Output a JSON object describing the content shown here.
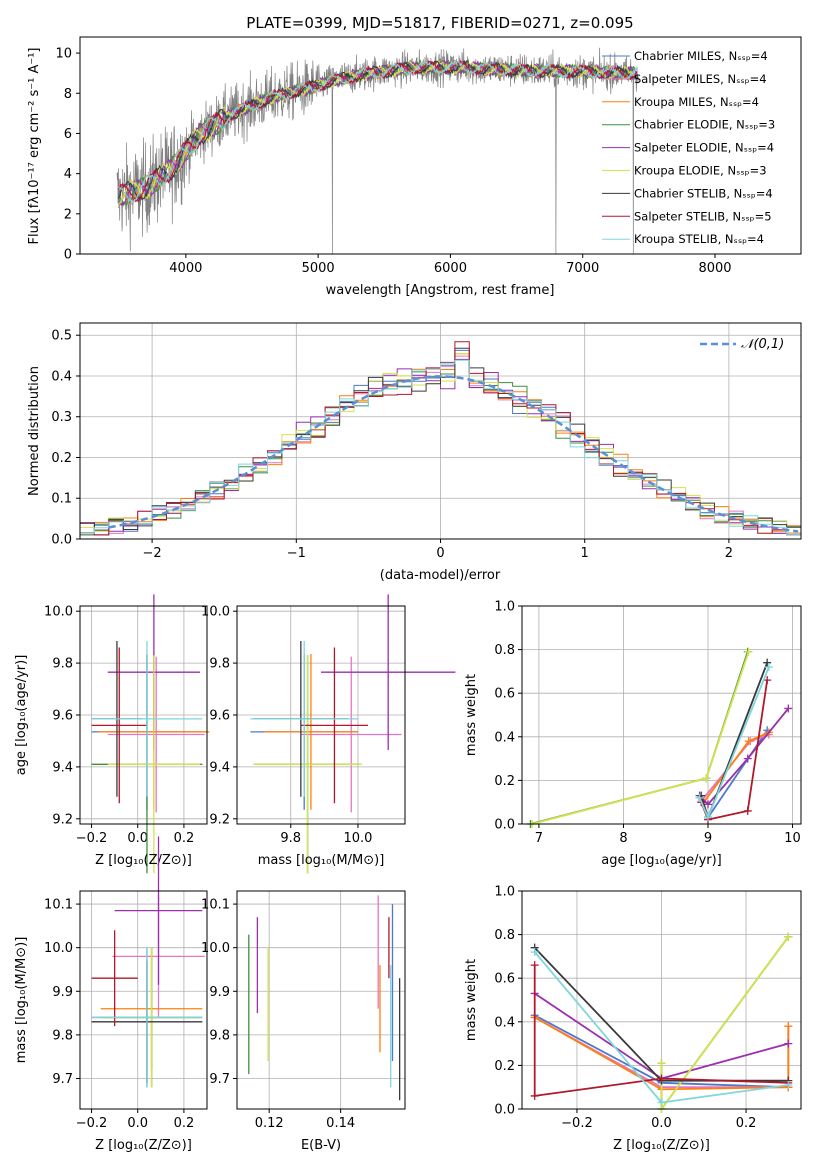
{
  "colors": {
    "chabrier_miles": "#4e79c7",
    "salpeter_miles": "#e377c2",
    "kroupa_miles": "#ff7f0e",
    "chabrier_elodie": "#3f8f3f",
    "salpeter_elodie": "#9b2fae",
    "kroupa_elodie": "#d4e44a",
    "chabrier_stelib": "#3a3a3a",
    "salpeter_stelib": "#b2182b",
    "kroupa_stelib": "#7fd6dd",
    "data": "#808080",
    "normal": "#5b8fd6"
  },
  "chart_data": [
    {
      "id": "spectrum",
      "type": "line",
      "title": "PLATE=0399, MJD=51817, FIBERID=0271, z=0.095",
      "xlabel": "wavelength [Angstrom, rest frame]",
      "ylabel": "Flux [fλ10⁻¹⁷ erg cm⁻² s⁻¹ A⁻¹]",
      "xlim": [
        3200,
        8650
      ],
      "ylim": [
        0,
        10.8
      ],
      "xticks": [
        "4000",
        "5000",
        "6000",
        "7000",
        "8000"
      ],
      "yticks": [
        "0",
        "2",
        "4",
        "6",
        "8",
        "10"
      ],
      "legend_position": "right",
      "legend": [
        {
          "label": "Chabrier MILES, Nₛₛₚ=4",
          "color_key": "chabrier_miles"
        },
        {
          "label": "Salpeter MILES, Nₛₛₚ=4",
          "color_key": "salpeter_miles"
        },
        {
          "label": "Kroupa MILES, Nₛₛₚ=4",
          "color_key": "kroupa_miles"
        },
        {
          "label": "Chabrier ELODIE, Nₛₛₚ=3",
          "color_key": "chabrier_elodie"
        },
        {
          "label": "Salpeter ELODIE, Nₛₛₚ=4",
          "color_key": "salpeter_elodie"
        },
        {
          "label": "Kroupa ELODIE, Nₛₛₚ=3",
          "color_key": "kroupa_elodie"
        },
        {
          "label": "Chabrier STELIB, Nₛₛₚ=4",
          "color_key": "chabrier_stelib"
        },
        {
          "label": "Salpeter STELIB, Nₛₛₚ=5",
          "color_key": "salpeter_stelib"
        },
        {
          "label": "Kroupa STELIB, Nₛₛₚ=4",
          "color_key": "kroupa_stelib"
        }
      ],
      "continuum": {
        "x": [
          3500,
          3700,
          3900,
          4100,
          4300,
          4500,
          4700,
          4900,
          5100,
          5300,
          5500,
          5700,
          5900,
          6100,
          6300,
          6500,
          6700,
          6900,
          7100,
          7300,
          7420
        ],
        "y": [
          2.9,
          3.3,
          4.3,
          5.9,
          6.8,
          7.4,
          7.9,
          8.2,
          8.6,
          8.9,
          9.1,
          9.25,
          9.3,
          9.3,
          9.2,
          9.15,
          9.1,
          9.1,
          9.05,
          9.0,
          9.0
        ]
      }
    },
    {
      "id": "residuals",
      "type": "bar",
      "xlabel": "(data-model)/error",
      "ylabel": "Normed distribution",
      "xlim": [
        -2.5,
        2.5
      ],
      "ylim": [
        0,
        0.53
      ],
      "xticks": [
        "−2",
        "−1",
        "0",
        "1",
        "2"
      ],
      "yticks": [
        "0.0",
        "0.1",
        "0.2",
        "0.3",
        "0.4",
        "0.5"
      ],
      "legend_position": "top-right",
      "normal_label": "𝒩(0,1)",
      "bin_width": 0.1
    },
    {
      "id": "age-vs-Z",
      "type": "scatter",
      "xlabel": "Z [log₁₀(Z/Z⊙)]",
      "ylabel": "age  [log₁₀(age/yr)]",
      "xlim": [
        -0.25,
        0.3
      ],
      "ylim": [
        9.18,
        10.02
      ],
      "xticks": [
        "−0.2",
        "0.0",
        "0.2"
      ],
      "yticks": [
        "9.2",
        "9.4",
        "9.6",
        "9.8",
        "10.0"
      ],
      "points": [
        {
          "color_key": "chabrier_miles",
          "x": 0.04,
          "xerr": 0.24,
          "y": 9.535,
          "yerr": 0.3
        },
        {
          "color_key": "salpeter_miles",
          "x": 0.08,
          "xerr": 0.21,
          "y": 9.525,
          "yerr": 0.3
        },
        {
          "color_key": "kroupa_miles",
          "x": 0.07,
          "xerr": 0.24,
          "y": 9.535,
          "yerr": 0.3
        },
        {
          "color_key": "chabrier_elodie",
          "x": 0.04,
          "xerr": 0.24,
          "y": 9.41,
          "yerr": 0.42
        },
        {
          "color_key": "salpeter_elodie",
          "x": 0.07,
          "xerr": 0.2,
          "y": 9.765,
          "yerr": 0.3
        },
        {
          "color_key": "kroupa_elodie",
          "x": 0.07,
          "xerr": 0.2,
          "y": 9.41,
          "yerr": 0.42
        },
        {
          "color_key": "chabrier_stelib",
          "x": -0.09,
          "xerr": 0.11,
          "y": 9.585,
          "yerr": 0.3
        },
        {
          "color_key": "salpeter_stelib",
          "x": -0.08,
          "xerr": 0.12,
          "y": 9.56,
          "yerr": 0.3
        },
        {
          "color_key": "kroupa_stelib",
          "x": 0.04,
          "xerr": 0.24,
          "y": 9.585,
          "yerr": 0.3
        }
      ]
    },
    {
      "id": "age-vs-mass",
      "type": "scatter",
      "xlabel": "mass [log₁₀(M/M⊙)]",
      "xlim": [
        9.64,
        10.14
      ],
      "ylim": [
        9.18,
        10.02
      ],
      "xticks": [
        "9.8",
        "10.0"
      ],
      "yticks": [
        "9.2",
        "9.4",
        "9.6",
        "9.8",
        "10.0"
      ],
      "points": [
        {
          "color_key": "chabrier_miles",
          "x": 9.84,
          "xerr": 0.16,
          "y": 9.535,
          "yerr": 0.3
        },
        {
          "color_key": "salpeter_miles",
          "x": 9.98,
          "xerr": 0.15,
          "y": 9.525,
          "yerr": 0.3
        },
        {
          "color_key": "kroupa_miles",
          "x": 9.86,
          "xerr": 0.14,
          "y": 9.535,
          "yerr": 0.3
        },
        {
          "color_key": "chabrier_elodie",
          "x": 9.85,
          "xerr": 0.16,
          "y": 9.41,
          "yerr": 0.42
        },
        {
          "color_key": "salpeter_elodie",
          "x": 10.09,
          "xerr": 0.2,
          "y": 9.765,
          "yerr": 0.3
        },
        {
          "color_key": "kroupa_elodie",
          "x": 9.85,
          "xerr": 0.16,
          "y": 9.41,
          "yerr": 0.42
        },
        {
          "color_key": "chabrier_stelib",
          "x": 9.83,
          "xerr": 0.14,
          "y": 9.585,
          "yerr": 0.3
        },
        {
          "color_key": "salpeter_stelib",
          "x": 9.93,
          "xerr": 0.1,
          "y": 9.56,
          "yerr": 0.3
        },
        {
          "color_key": "kroupa_stelib",
          "x": 9.84,
          "xerr": 0.16,
          "y": 9.585,
          "yerr": 0.3
        }
      ]
    },
    {
      "id": "mass-weight-vs-age",
      "type": "line",
      "xlabel": "age  [log₁₀(age/yr)]",
      "ylabel": "mass weight",
      "xlim": [
        6.8,
        10.1
      ],
      "ylim": [
        0,
        1
      ],
      "xticks": [
        "7",
        "8",
        "9",
        "10"
      ],
      "yticks": [
        "0.0",
        "0.2",
        "0.4",
        "0.6",
        "0.8",
        "1.0"
      ],
      "series": [
        {
          "color_key": "chabrier_miles",
          "x": [
            8.9,
            9.0,
            9.7
          ],
          "y": [
            0.12,
            0.03,
            0.43
          ]
        },
        {
          "color_key": "salpeter_miles",
          "x": [
            8.93,
            9.5,
            9.72
          ],
          "y": [
            0.11,
            0.38,
            0.41
          ]
        },
        {
          "color_key": "kroupa_miles",
          "x": [
            8.95,
            9.48,
            9.72
          ],
          "y": [
            0.1,
            0.38,
            0.42
          ]
        },
        {
          "color_key": "chabrier_elodie",
          "x": [
            6.9,
            8.98,
            9.47
          ],
          "y": [
            0.0,
            0.21,
            0.79
          ]
        },
        {
          "color_key": "salpeter_elodie",
          "x": [
            8.9,
            9.0,
            9.47,
            9.95
          ],
          "y": [
            0.13,
            0.09,
            0.3,
            0.53
          ]
        },
        {
          "color_key": "kroupa_elodie",
          "x": [
            6.92,
            8.98,
            9.48
          ],
          "y": [
            0.0,
            0.21,
            0.79
          ]
        },
        {
          "color_key": "chabrier_stelib",
          "x": [
            8.92,
            9.0,
            9.7
          ],
          "y": [
            0.13,
            0.03,
            0.74
          ]
        },
        {
          "color_key": "salpeter_stelib",
          "x": [
            8.92,
            9.0,
            9.47,
            9.7
          ],
          "y": [
            0.1,
            0.02,
            0.06,
            0.66
          ]
        },
        {
          "color_key": "kroupa_stelib",
          "x": [
            8.9,
            9.0,
            9.72
          ],
          "y": [
            0.12,
            0.03,
            0.72
          ]
        }
      ]
    },
    {
      "id": "mass-vs-Z",
      "type": "scatter",
      "xlabel": "Z [log₁₀(Z/Z⊙)]",
      "ylabel": "mass [log₁₀(M/M⊙)]",
      "xlim": [
        -0.25,
        0.3
      ],
      "ylim": [
        9.63,
        10.13
      ],
      "xticks": [
        "−0.2",
        "0.0",
        "0.2"
      ],
      "yticks": [
        "9.7",
        "9.8",
        "9.9",
        "10.0",
        "10.1"
      ],
      "points": [
        {
          "color_key": "chabrier_miles",
          "x": 0.04,
          "xerr": 0.24,
          "y": 9.84,
          "yerr": 0.16
        },
        {
          "color_key": "salpeter_miles",
          "x": 0.09,
          "xerr": 0.2,
          "y": 9.98,
          "yerr": 0.14
        },
        {
          "color_key": "kroupa_miles",
          "x": 0.06,
          "xerr": 0.22,
          "y": 9.86,
          "yerr": 0.14
        },
        {
          "color_key": "chabrier_elodie",
          "x": 0.06,
          "xerr": 0.22,
          "y": 9.84,
          "yerr": 0.16
        },
        {
          "color_key": "salpeter_elodie",
          "x": 0.09,
          "xerr": 0.19,
          "y": 10.085,
          "yerr": 0.17
        },
        {
          "color_key": "kroupa_elodie",
          "x": 0.06,
          "xerr": 0.22,
          "y": 9.84,
          "yerr": 0.16
        },
        {
          "color_key": "chabrier_stelib",
          "x": 0.04,
          "xerr": 0.24,
          "y": 9.83,
          "yerr": 0.14
        },
        {
          "color_key": "salpeter_stelib",
          "x": -0.1,
          "xerr": 0.1,
          "y": 9.93,
          "yerr": 0.11
        },
        {
          "color_key": "kroupa_stelib",
          "x": 0.04,
          "xerr": 0.24,
          "y": 9.84,
          "yerr": 0.16
        }
      ]
    },
    {
      "id": "mass-vs-ebv",
      "type": "scatter",
      "xlabel": "E(B-V)",
      "xlim": [
        0.111,
        0.158
      ],
      "ylim": [
        9.63,
        10.13
      ],
      "xticks": [
        "0.12",
        "0.14"
      ],
      "yticks": [
        "9.7",
        "9.8",
        "9.9",
        "10.0",
        "10.1"
      ],
      "points": [
        {
          "color_key": "chabrier_elodie",
          "x": 0.1143,
          "y": 9.87,
          "yerr": 0.16
        },
        {
          "color_key": "salpeter_elodie",
          "x": 0.1167,
          "y": 9.96,
          "yerr": 0.11
        },
        {
          "color_key": "kroupa_elodie",
          "x": 0.1197,
          "y": 9.87,
          "yerr": 0.13
        },
        {
          "color_key": "salpeter_miles",
          "x": 0.1505,
          "y": 9.99,
          "yerr": 0.13
        },
        {
          "color_key": "kroupa_miles",
          "x": 0.151,
          "y": 9.86,
          "yerr": 0.1
        },
        {
          "color_key": "salpeter_stelib",
          "x": 0.1535,
          "y": 10.0,
          "yerr": 0.07
        },
        {
          "color_key": "kroupa_stelib",
          "x": 0.154,
          "y": 9.82,
          "yerr": 0.14
        },
        {
          "color_key": "chabrier_miles",
          "x": 0.1545,
          "y": 9.92,
          "yerr": 0.18
        },
        {
          "color_key": "chabrier_stelib",
          "x": 0.1565,
          "y": 9.79,
          "yerr": 0.14
        }
      ]
    },
    {
      "id": "mass-weight-vs-Z",
      "type": "line",
      "xlabel": "Z [log₁₀(Z/Z⊙)]",
      "ylabel": "mass weight",
      "xlim": [
        -0.33,
        0.33
      ],
      "ylim": [
        0,
        1
      ],
      "xticks": [
        "−0.2",
        "0.0",
        "0.2"
      ],
      "yticks": [
        "0.0",
        "0.2",
        "0.4",
        "0.6",
        "0.8",
        "1.0"
      ],
      "series": [
        {
          "color_key": "chabrier_miles",
          "x": [
            -0.3,
            0.0,
            0.3
          ],
          "y": [
            0.43,
            0.12,
            0.1
          ]
        },
        {
          "color_key": "salpeter_miles",
          "x": [
            -0.3,
            0.0,
            0.3,
            0.3
          ],
          "y": [
            0.42,
            0.1,
            0.1,
            0.38
          ]
        },
        {
          "color_key": "kroupa_miles",
          "x": [
            -0.3,
            0.0,
            0.3,
            0.3
          ],
          "y": [
            0.42,
            0.09,
            0.1,
            0.38
          ]
        },
        {
          "color_key": "chabrier_elodie",
          "x": [
            0.0,
            0.0,
            0.3
          ],
          "y": [
            0.21,
            0.0,
            0.79
          ]
        },
        {
          "color_key": "salpeter_elodie",
          "x": [
            -0.3,
            0.0,
            0.3
          ],
          "y": [
            0.53,
            0.14,
            0.3
          ]
        },
        {
          "color_key": "kroupa_elodie",
          "x": [
            0.0,
            0.0,
            0.3
          ],
          "y": [
            0.21,
            0.0,
            0.79
          ]
        },
        {
          "color_key": "chabrier_stelib",
          "x": [
            -0.3,
            0.0,
            0.3
          ],
          "y": [
            0.74,
            0.13,
            0.13
          ]
        },
        {
          "color_key": "salpeter_stelib",
          "x": [
            -0.3,
            -0.3,
            0.0,
            0.3
          ],
          "y": [
            0.66,
            0.06,
            0.14,
            0.12
          ]
        },
        {
          "color_key": "kroupa_stelib",
          "x": [
            -0.3,
            0.0,
            0.3
          ],
          "y": [
            0.72,
            0.03,
            0.11
          ]
        }
      ]
    }
  ]
}
